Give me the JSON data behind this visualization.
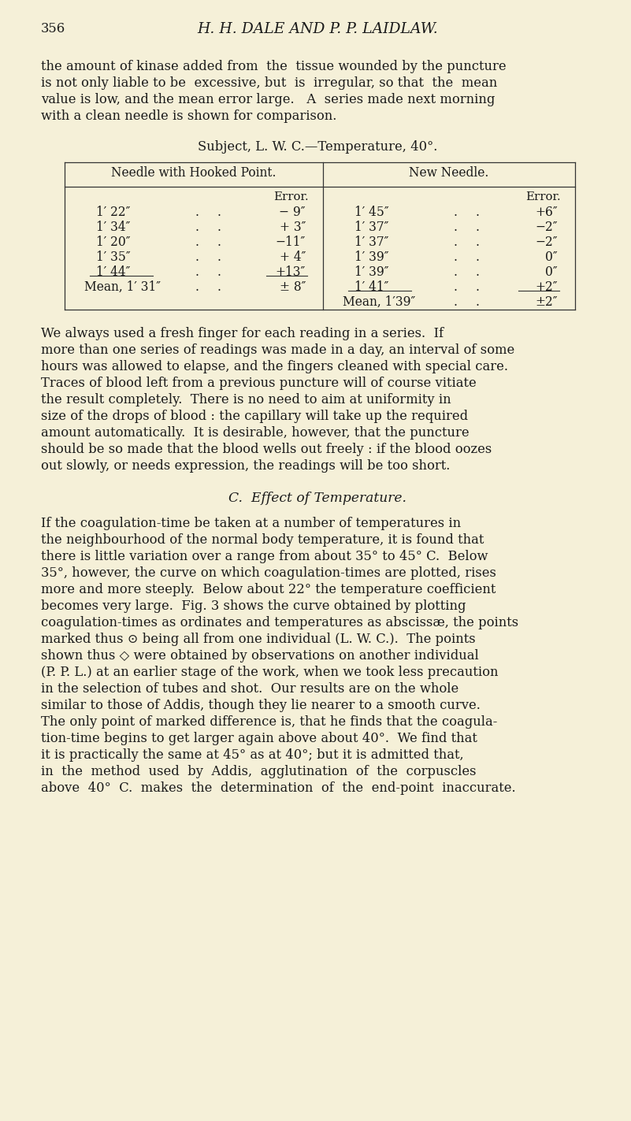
{
  "bg_color": "#f5f0d8",
  "text_color": "#1a1a1a",
  "page_number": "356",
  "header": "H. H. DALE AND P. P. LAIDLAW.",
  "para1_lines": [
    "the amount of kinase added from  the  tissue wounded by the puncture",
    "is not only liable to be  excessive, but  is  irregular, so that  the  mean",
    "value is low, and the mean error large.   A  series made next morning",
    "with a clean needle is shown for comparison."
  ],
  "subject_line": "Subject, L. W. C.—Temperature, 40°.",
  "col1_header": "Needle with Hooked Point.",
  "col2_header": "New Needle.",
  "error_label": "Error.",
  "col1_rows": [
    [
      "1′ 22″",
      ".",
      ".",
      "− 9″"
    ],
    [
      "1′ 34″",
      ".",
      ".",
      "+ 3″"
    ],
    [
      "1′ 20″",
      ".",
      ".",
      "−11″"
    ],
    [
      "1′ 35″",
      ".",
      "+ 4″"
    ],
    [
      "1′ 44″",
      ".",
      ".",
      "+13″"
    ]
  ],
  "col1_mean_time": "Mean, 1′ 31″",
  "col1_mean_dots": ".",
  "col1_mean_err": "± 8″",
  "col2_rows": [
    [
      "1′ 45″",
      ".",
      ".",
      "+6″"
    ],
    [
      "1′ 37″",
      ".",
      ".",
      "−2″"
    ],
    [
      "1′ 37″",
      ".",
      ".",
      "−2″"
    ],
    [
      "1′ 39″",
      ".",
      ".",
      "0″"
    ],
    [
      "1′ 39″",
      ".",
      ".",
      "0″"
    ],
    [
      "1′ 41″",
      ".",
      ".",
      "+2″"
    ]
  ],
  "col2_mean_time": "Mean, 1′39″",
  "col2_mean_dots": ".",
  "col2_mean_err": "±2″",
  "para2_lines": [
    "We always used a fresh finger for each reading in a series.  If",
    "more than one series of readings was made in a day, an interval of some",
    "hours was allowed to elapse, and the fingers cleaned with special care.",
    "Traces of blood left from a previous puncture will of course vitiate",
    "the result completely.  There is no need to aim at uniformity in",
    "size of the drops of blood : the capillary will take up the required",
    "amount automatically.  It is desirable, however, that the puncture",
    "should be so made that the blood wells out freely : if the blood oozes",
    "out slowly, or needs expression, the readings will be too short."
  ],
  "section_c": "C.  Effect of Temperature.",
  "para3_lines": [
    "If the coagulation-time be taken at a number of temperatures in",
    "the neighbourhood of the normal body temperature, it is found that",
    "there is little variation over a range from about 35° to 45° C.  Below",
    "35°, however, the curve on which coagulation-times are plotted, rises",
    "more and more steeply.  Below about 22° the temperature coefficient",
    "becomes very large.  Fig. 3 shows the curve obtained by plotting",
    "coagulation-times as ordinates and temperatures as abscissæ, the points",
    "marked thus ⊙ being all from one individual (L. W. C.).  The points",
    "shown thus ◇ were obtained by observations on another individual",
    "(P. P. L.) at an earlier stage of the work, when we took less precaution",
    "in the selection of tubes and shot.  Our results are on the whole",
    "similar to those of Addis, though they lie nearer to a smooth curve.",
    "The only point of marked difference is, that he finds that the coagula-",
    "tion-time begins to get larger again above about 40°.  We find that",
    "it is practically the same at 45° as at 40°; but it is admitted that,",
    "in  the  method  used  by  Addis,  agglutination  of  the  corpuscles",
    "above  40°  C.  makes  the  determination  of  the  end-point  inaccurate."
  ]
}
